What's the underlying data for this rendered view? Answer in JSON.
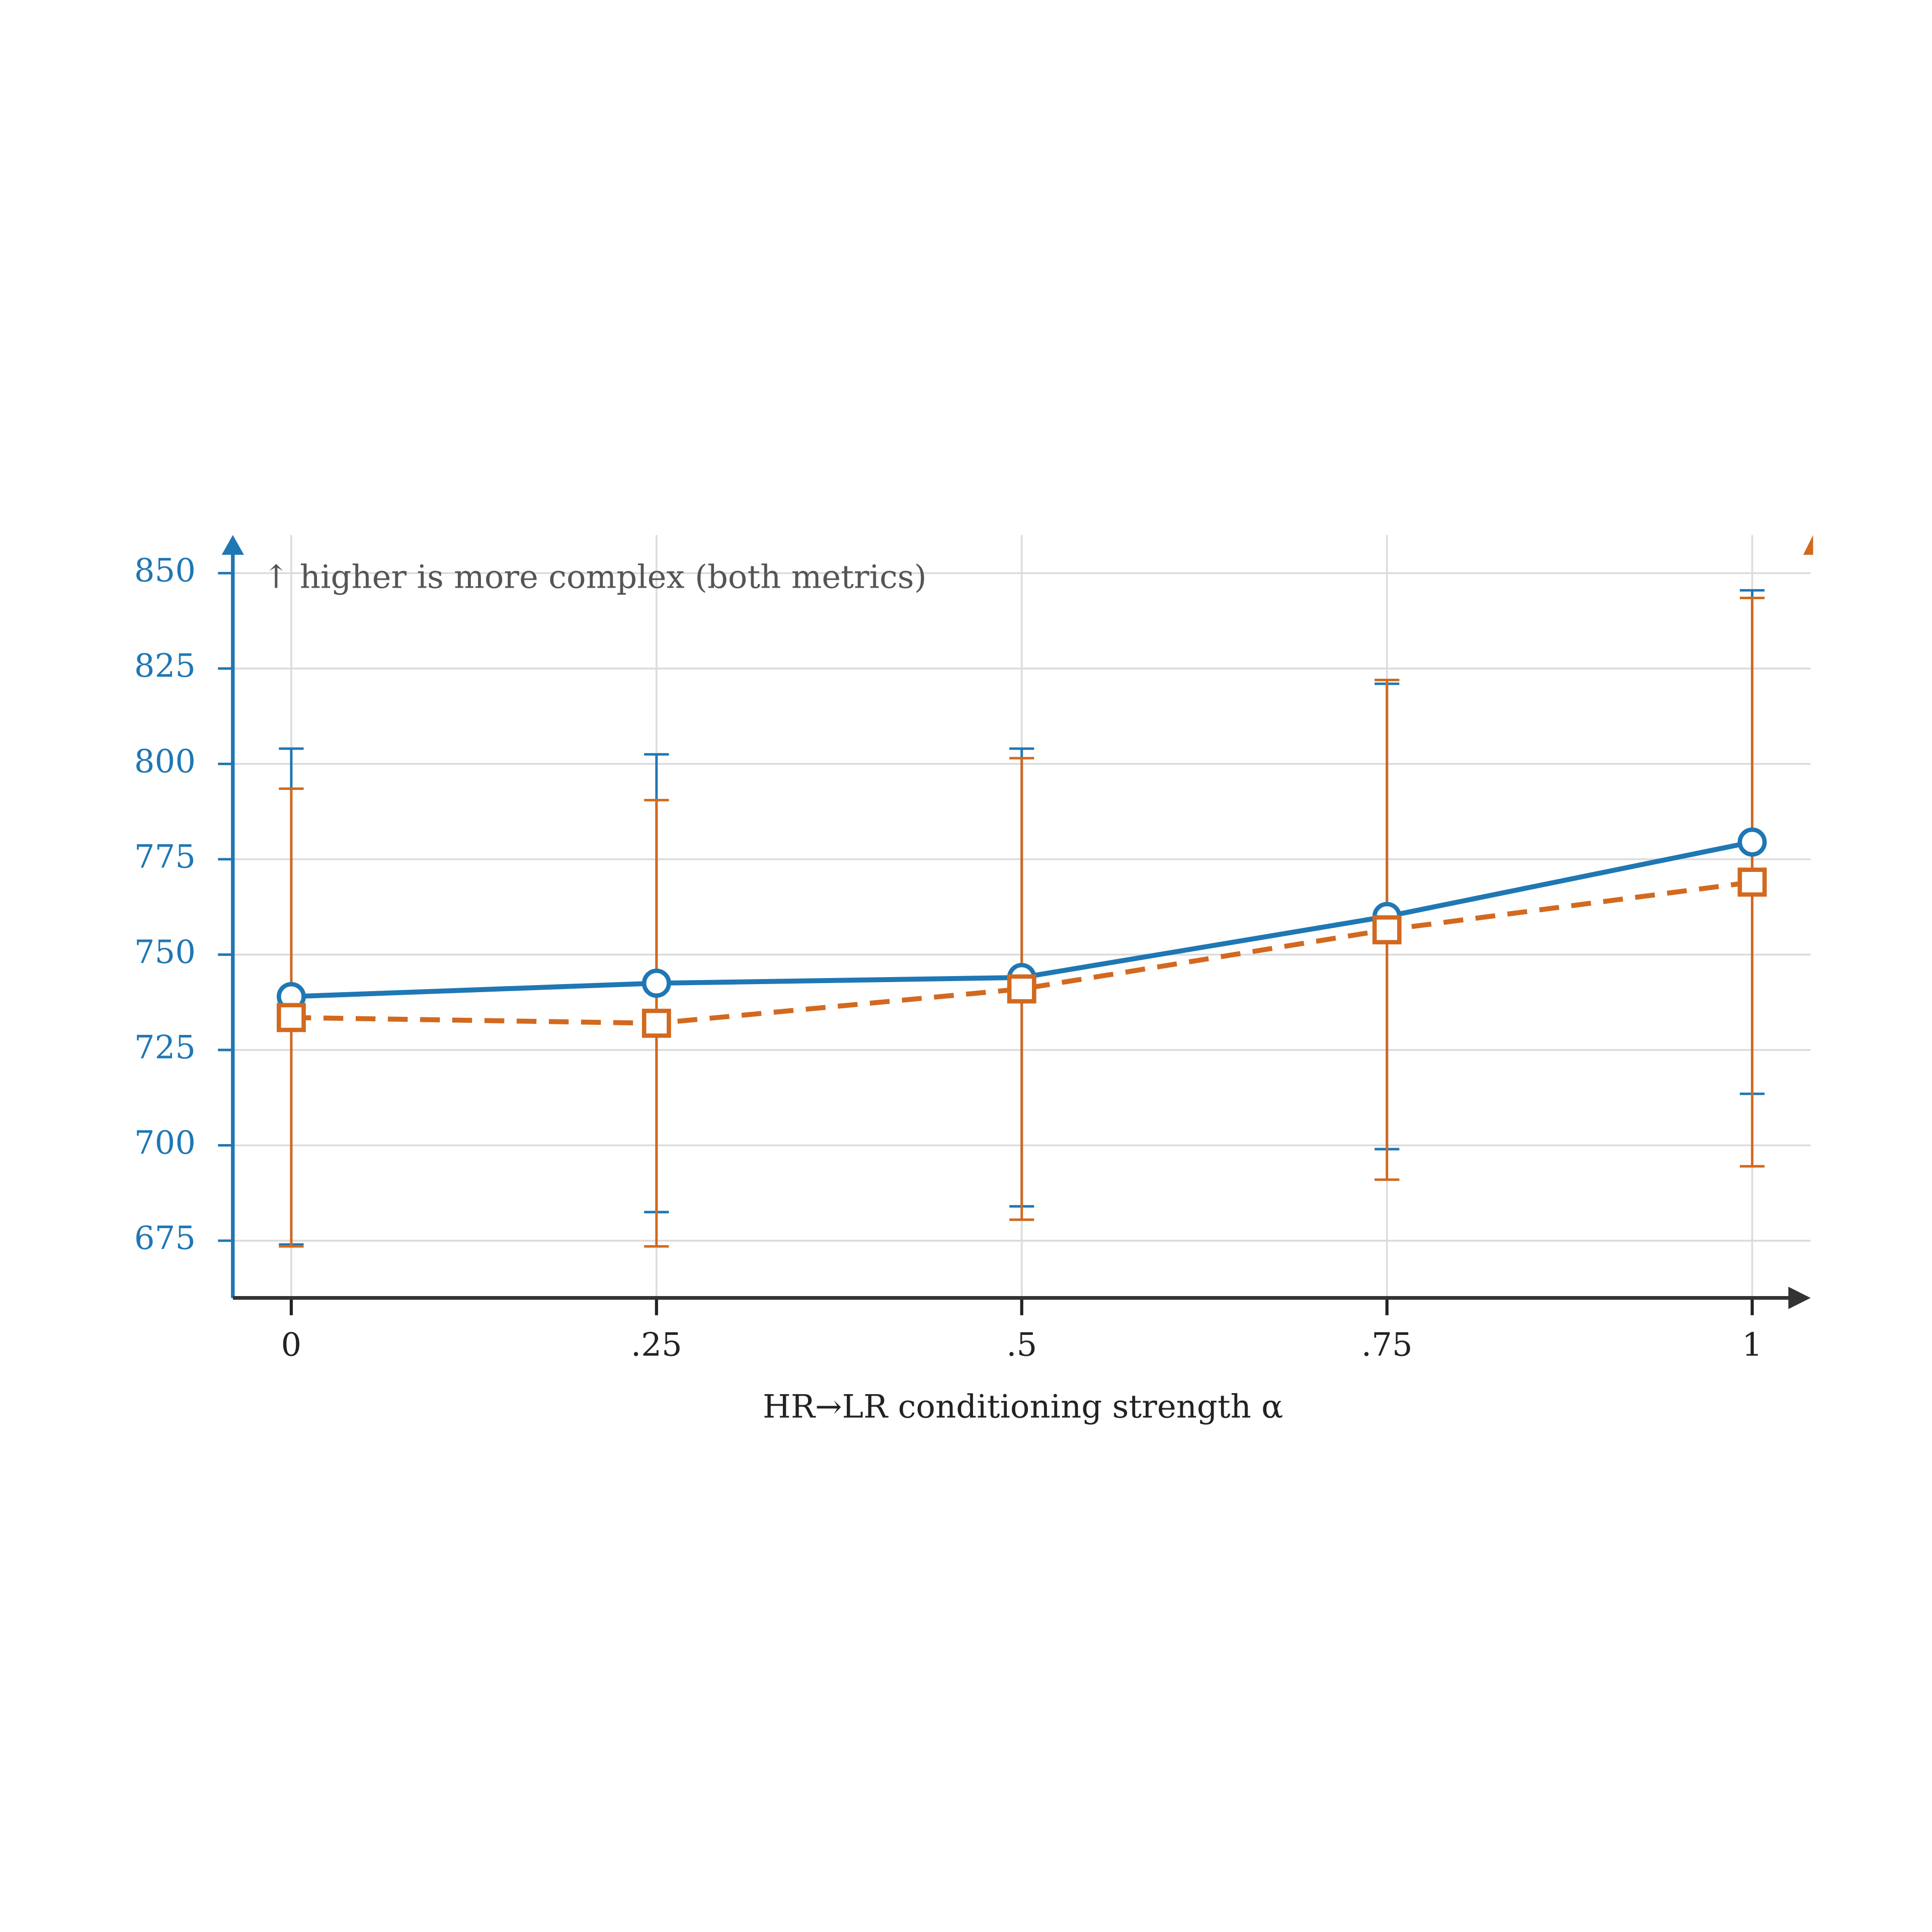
{
  "chart_data": {
    "type": "line",
    "annotation": "↑ higher is more complex (both metrics)",
    "x_label": "HR→LR conditioning strength α",
    "x": [
      0,
      0.25,
      0.5,
      0.75,
      1
    ],
    "xlim": [
      -0.04,
      1.04
    ],
    "xticks": [
      0,
      {
        "value": 0.25,
        "label": ".25"
      },
      {
        "value": 0.5,
        "label": ".5"
      },
      {
        "value": 0.75,
        "label": ".75"
      },
      1
    ],
    "ylim": [
      660,
      860
    ],
    "yticks": [
      675,
      700,
      725,
      750,
      775,
      800,
      825,
      850
    ],
    "grid": true,
    "series": [
      {
        "color": "#1f77b4",
        "marker": "circle",
        "dash": false,
        "values": [
          739,
          742.5,
          744,
          760,
          779.5
        ],
        "errors": [
          65,
          60,
          60,
          61,
          66
        ]
      },
      {
        "color": "#d2691e",
        "marker": "square",
        "dash": true,
        "values": [
          733.5,
          732,
          741,
          756.5,
          769
        ],
        "errors": [
          60,
          58.5,
          60.5,
          65.5,
          74.5
        ]
      }
    ]
  }
}
